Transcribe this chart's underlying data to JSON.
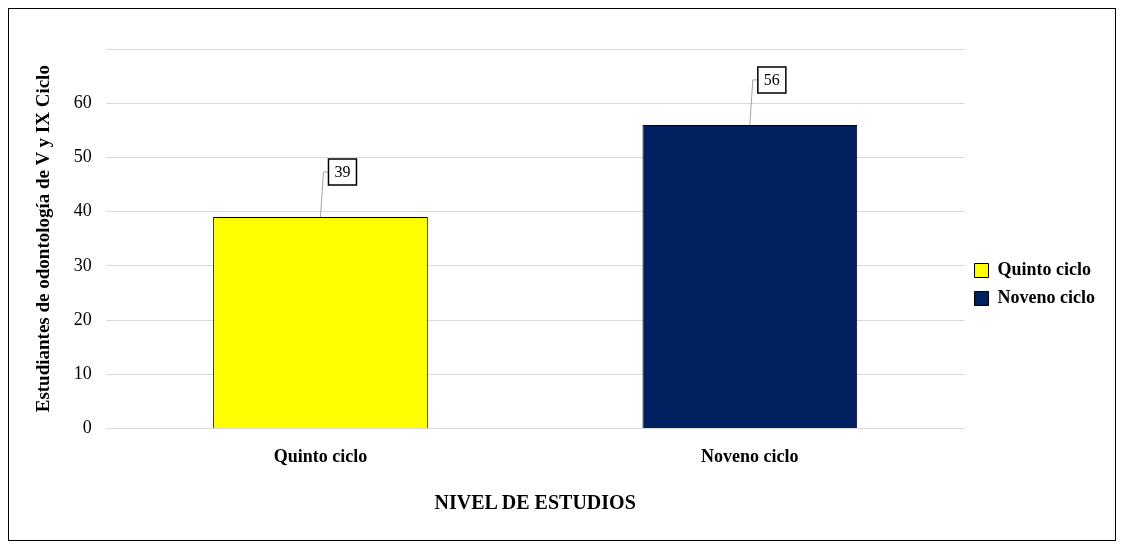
{
  "chart_data": {
    "type": "bar",
    "xlabel": "NIVEL DE ESTUDIOS",
    "ylabel": "Estudiantes de odontología de V y IX Ciclo",
    "categories": [
      "Quinto ciclo",
      "Noveno ciclo"
    ],
    "series": [
      {
        "name": "Quinto ciclo",
        "color": "#ffff00",
        "values": [
          39,
          null
        ]
      },
      {
        "name": "Noveno ciclo",
        "color": "#002060",
        "values": [
          null,
          56
        ]
      }
    ],
    "ylim": [
      0,
      70
    ],
    "yticks": [
      0,
      10,
      20,
      30,
      40,
      50,
      60,
      {
        "value": 70,
        "label": null
      }
    ],
    "grid": "y",
    "legend": "right",
    "data_labels": true
  }
}
